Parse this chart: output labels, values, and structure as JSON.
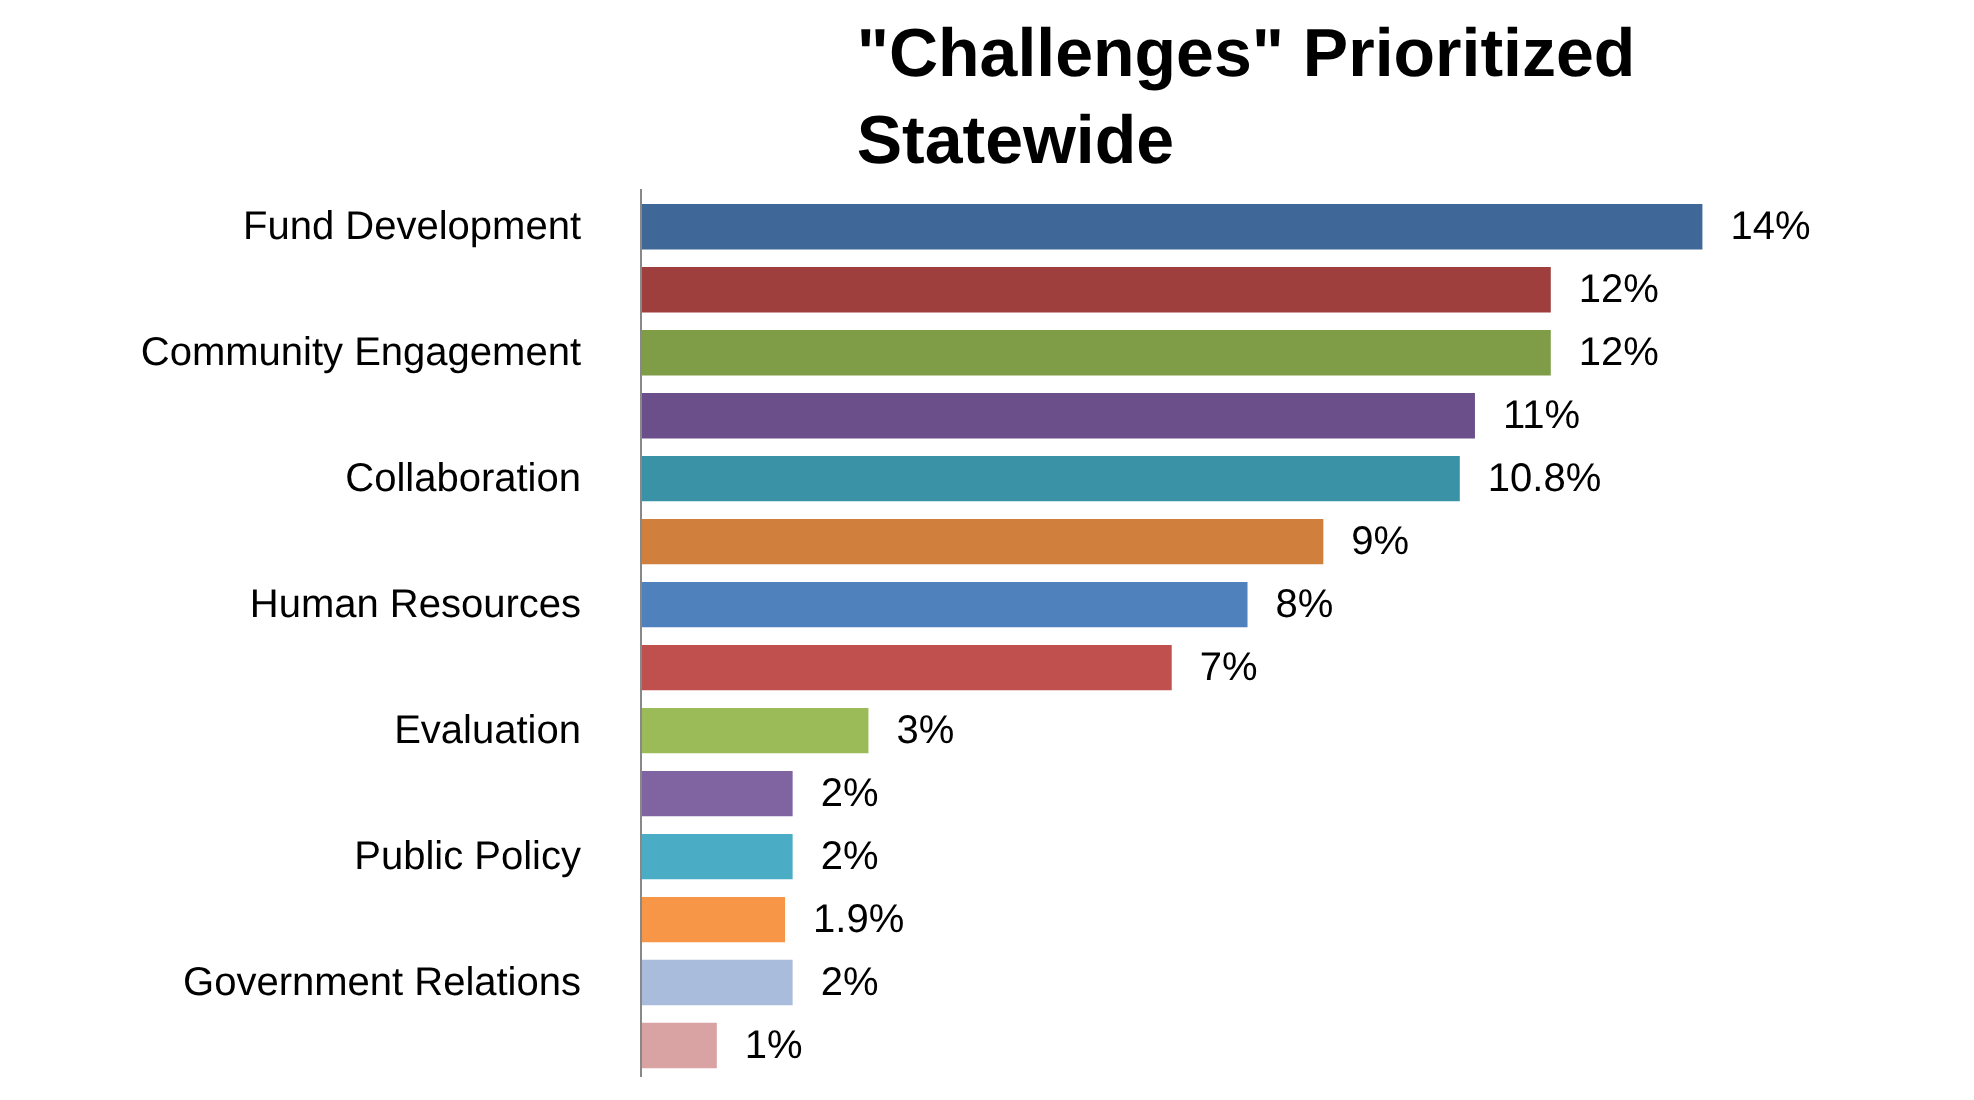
{
  "chart_data": {
    "type": "bar",
    "orientation": "horizontal",
    "title": "\"Challenges\" Prioritized\nStatewide",
    "categories": [
      "Fund Development",
      null,
      "Community Engagement",
      null,
      "Collaboration",
      null,
      "Human Resources",
      null,
      "Evaluation",
      null,
      "Public Policy",
      null,
      "Government Relations",
      null
    ],
    "values": [
      14,
      12,
      12,
      11,
      10.8,
      9,
      8,
      7,
      3,
      2,
      2,
      1.9,
      2,
      1
    ],
    "value_labels": [
      "14%",
      "12%",
      "12%",
      "11%",
      "10.8%",
      "9%",
      "8%",
      "7%",
      "3%",
      "2%",
      "2%",
      "1.9%",
      "2%",
      "1%"
    ],
    "colors": [
      "#3f6899",
      "#9e3f3e",
      "#7f9c46",
      "#6a4f8a",
      "#3a92a6",
      "#d07f3c",
      "#4f81bd",
      "#c0504d",
      "#9bbb59",
      "#8064a2",
      "#4bacc6",
      "#f79646",
      "#a9bcdb",
      "#d9a3a3"
    ],
    "grid": false,
    "tick_labels": "y"
  }
}
